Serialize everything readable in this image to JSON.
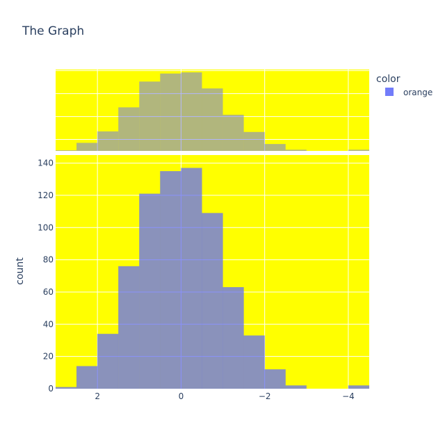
{
  "chart_data": {
    "type": "bar",
    "title": "The Graph",
    "xlabel": "",
    "ylabel": "count",
    "x_reversed": true,
    "xlim": [
      3.0,
      -4.5
    ],
    "ylim": [
      0,
      145
    ],
    "bin_edges": [
      3.0,
      2.5,
      2.0,
      1.5,
      1.0,
      0.5,
      0.0,
      -0.5,
      -1.0,
      -1.5,
      -2.0,
      -2.5,
      -3.0,
      -3.5,
      -4.0,
      -4.5
    ],
    "series": [
      {
        "name": "orange",
        "values": [
          1,
          14,
          34,
          76,
          121,
          135,
          137,
          109,
          63,
          33,
          12,
          2,
          0,
          0,
          2
        ]
      }
    ],
    "x_ticks": [
      {
        "value": 2,
        "label": "2"
      },
      {
        "value": 0,
        "label": "0"
      },
      {
        "value": -2,
        "label": "−2"
      },
      {
        "value": -4,
        "label": "−4"
      }
    ],
    "y_ticks": [
      {
        "value": 0,
        "label": "0"
      },
      {
        "value": 20,
        "label": "20"
      },
      {
        "value": 40,
        "label": "40"
      },
      {
        "value": 60,
        "label": "60"
      },
      {
        "value": 80,
        "label": "80"
      },
      {
        "value": 100,
        "label": "100"
      },
      {
        "value": 120,
        "label": "120"
      },
      {
        "value": 140,
        "label": "140"
      }
    ],
    "marginal": "histogram",
    "legend": {
      "title": "color",
      "placement": "top-right",
      "entries": [
        "orange"
      ]
    },
    "colors": {
      "plot_background": "#ffff00",
      "main_bar": "#636efa",
      "main_bar_opacity": 0.75,
      "marginal_bar_opacity": 0.5,
      "grid": "#ffffff",
      "text": "#2a3f5f"
    }
  }
}
